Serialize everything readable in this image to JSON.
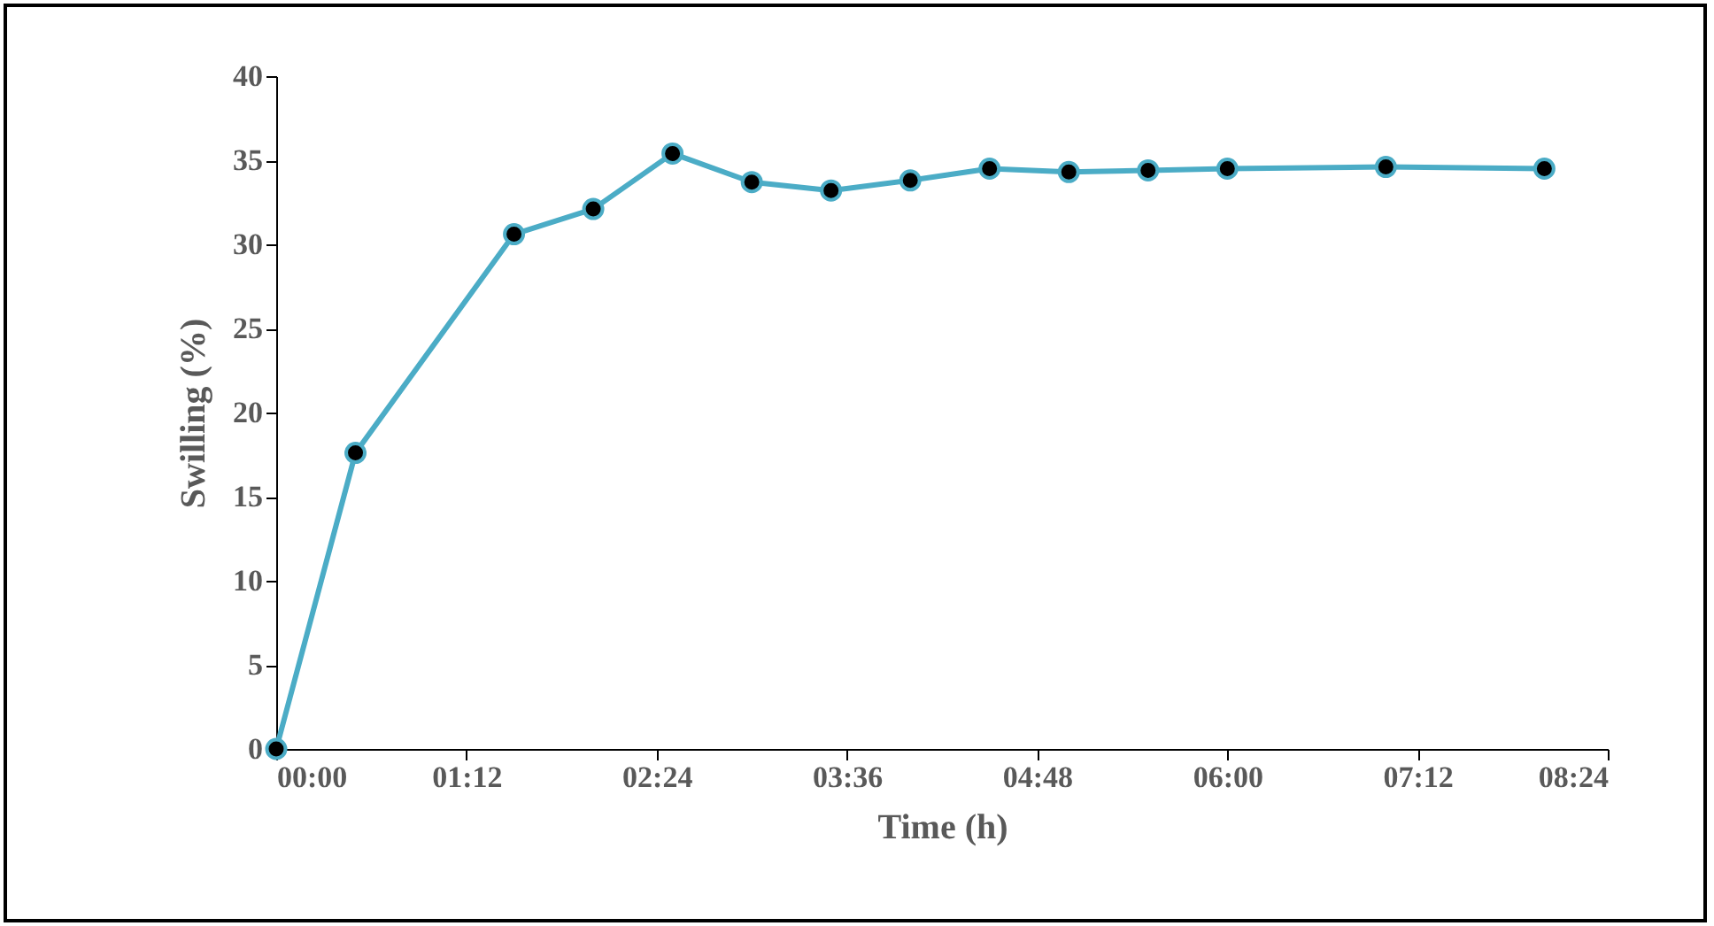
{
  "chart_data": {
    "type": "line",
    "xlabel": "Time (h)",
    "ylabel": "Swilling (%)",
    "x": [
      0,
      0.5,
      1.5,
      2.0,
      2.5,
      3.0,
      3.5,
      4.0,
      4.5,
      5.0,
      5.5,
      6.0,
      7.0,
      8.0
    ],
    "series": [
      {
        "color": "#4bacc6",
        "values": [
          0,
          17.6,
          30.6,
          32.1,
          35.4,
          33.7,
          33.2,
          33.8,
          34.5,
          34.3,
          34.4,
          34.5,
          34.6,
          34.5
        ]
      }
    ],
    "xlim": [
      0,
      8.4
    ],
    "xticks": [
      {
        "value": 0,
        "label": "00:00"
      },
      {
        "value": 1.2,
        "label": "01:12"
      },
      {
        "value": 2.4,
        "label": "02:24"
      },
      {
        "value": 3.6,
        "label": "03:36"
      },
      {
        "value": 4.8,
        "label": "04:48"
      },
      {
        "value": 6.0,
        "label": "06:00"
      },
      {
        "value": 7.2,
        "label": "07:12"
      },
      {
        "value": 8.4,
        "label": "08:24"
      }
    ],
    "ylim": [
      0,
      40
    ],
    "yticks": [
      0,
      5,
      10,
      15,
      20,
      25,
      30,
      35,
      40
    ],
    "grid": false,
    "marker": "circle",
    "line_style": "solid"
  }
}
